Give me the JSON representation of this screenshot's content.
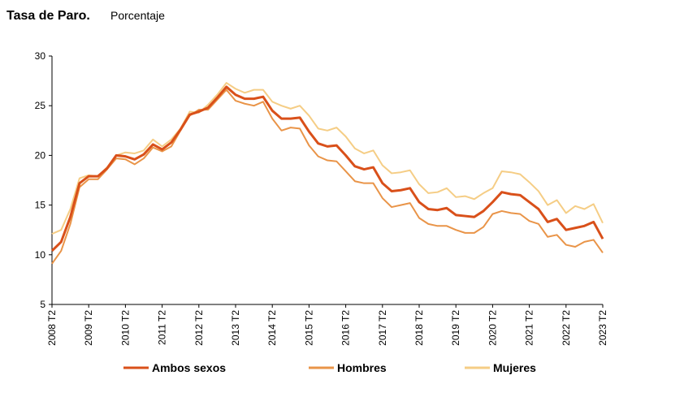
{
  "chart_data": {
    "type": "line",
    "title": "Tasa de Paro.",
    "subtitle": "Porcentaje",
    "categories": [
      "2008 T2",
      null,
      null,
      null,
      "2009 T2",
      null,
      null,
      null,
      "2010 T2",
      null,
      null,
      null,
      "2011 T2",
      null,
      null,
      null,
      "2012 T2",
      null,
      null,
      null,
      "2013 T2",
      null,
      null,
      null,
      "2014 T2",
      null,
      null,
      null,
      "2015 T2",
      null,
      null,
      null,
      "2016 T2",
      null,
      null,
      null,
      "2017 T2",
      null,
      null,
      null,
      "2018 T2",
      null,
      null,
      null,
      "2019 T2",
      null,
      null,
      null,
      "2020 T2",
      null,
      null,
      null,
      "2021 T2",
      null,
      null,
      null,
      "2022 T2",
      null,
      null,
      null,
      "2023 T2"
    ],
    "series": [
      {
        "name": "Ambos sexos",
        "color": "#d9501a",
        "values": [
          10.4,
          11.3,
          13.8,
          17.2,
          17.9,
          17.9,
          18.7,
          20.0,
          19.9,
          19.6,
          20.1,
          21.1,
          20.6,
          21.3,
          22.6,
          24.1,
          24.4,
          24.8,
          25.8,
          26.9,
          26.1,
          25.7,
          25.7,
          25.9,
          24.5,
          23.7,
          23.7,
          23.8,
          22.4,
          21.2,
          20.9,
          21.0,
          20.0,
          18.9,
          18.6,
          18.8,
          17.2,
          16.4,
          16.5,
          16.7,
          15.3,
          14.6,
          14.5,
          14.7,
          14.0,
          13.9,
          13.8,
          14.4,
          15.3,
          16.3,
          16.1,
          16.0,
          15.3,
          14.6,
          13.3,
          13.6,
          12.5,
          12.7,
          12.9,
          13.3,
          11.6
        ]
      },
      {
        "name": "Hombres",
        "color": "#e99448",
        "values": [
          9.1,
          10.4,
          13.1,
          16.8,
          17.6,
          17.6,
          18.6,
          19.7,
          19.6,
          19.1,
          19.7,
          20.8,
          20.4,
          20.9,
          22.5,
          24.0,
          24.6,
          24.6,
          25.6,
          26.6,
          25.5,
          25.2,
          25.0,
          25.4,
          23.7,
          22.5,
          22.8,
          22.7,
          21.0,
          19.9,
          19.5,
          19.4,
          18.4,
          17.4,
          17.2,
          17.2,
          15.7,
          14.8,
          15.0,
          15.2,
          13.7,
          13.1,
          12.9,
          12.9,
          12.5,
          12.2,
          12.2,
          12.8,
          14.1,
          14.4,
          14.2,
          14.1,
          13.4,
          13.1,
          11.8,
          12.0,
          11.0,
          10.8,
          11.3,
          11.5,
          10.2
        ]
      },
      {
        "name": "Mujeres",
        "color": "#f5cd85",
        "values": [
          12.1,
          12.5,
          14.6,
          17.7,
          18.0,
          17.9,
          18.8,
          20.0,
          20.3,
          20.2,
          20.5,
          21.6,
          20.9,
          21.6,
          22.7,
          24.4,
          24.3,
          25.1,
          26.1,
          27.3,
          26.7,
          26.3,
          26.6,
          26.6,
          25.4,
          25.0,
          24.7,
          25.0,
          24.0,
          22.7,
          22.5,
          22.8,
          21.9,
          20.7,
          20.2,
          20.5,
          19.0,
          18.2,
          18.3,
          18.5,
          17.1,
          16.2,
          16.3,
          16.7,
          15.8,
          15.9,
          15.6,
          16.2,
          16.7,
          18.4,
          18.3,
          18.1,
          17.3,
          16.4,
          15.0,
          15.5,
          14.2,
          14.9,
          14.6,
          15.1,
          13.2
        ]
      }
    ],
    "ylim": [
      5,
      30
    ],
    "yticks": [
      5,
      10,
      15,
      20,
      25,
      30
    ],
    "grid": false
  }
}
